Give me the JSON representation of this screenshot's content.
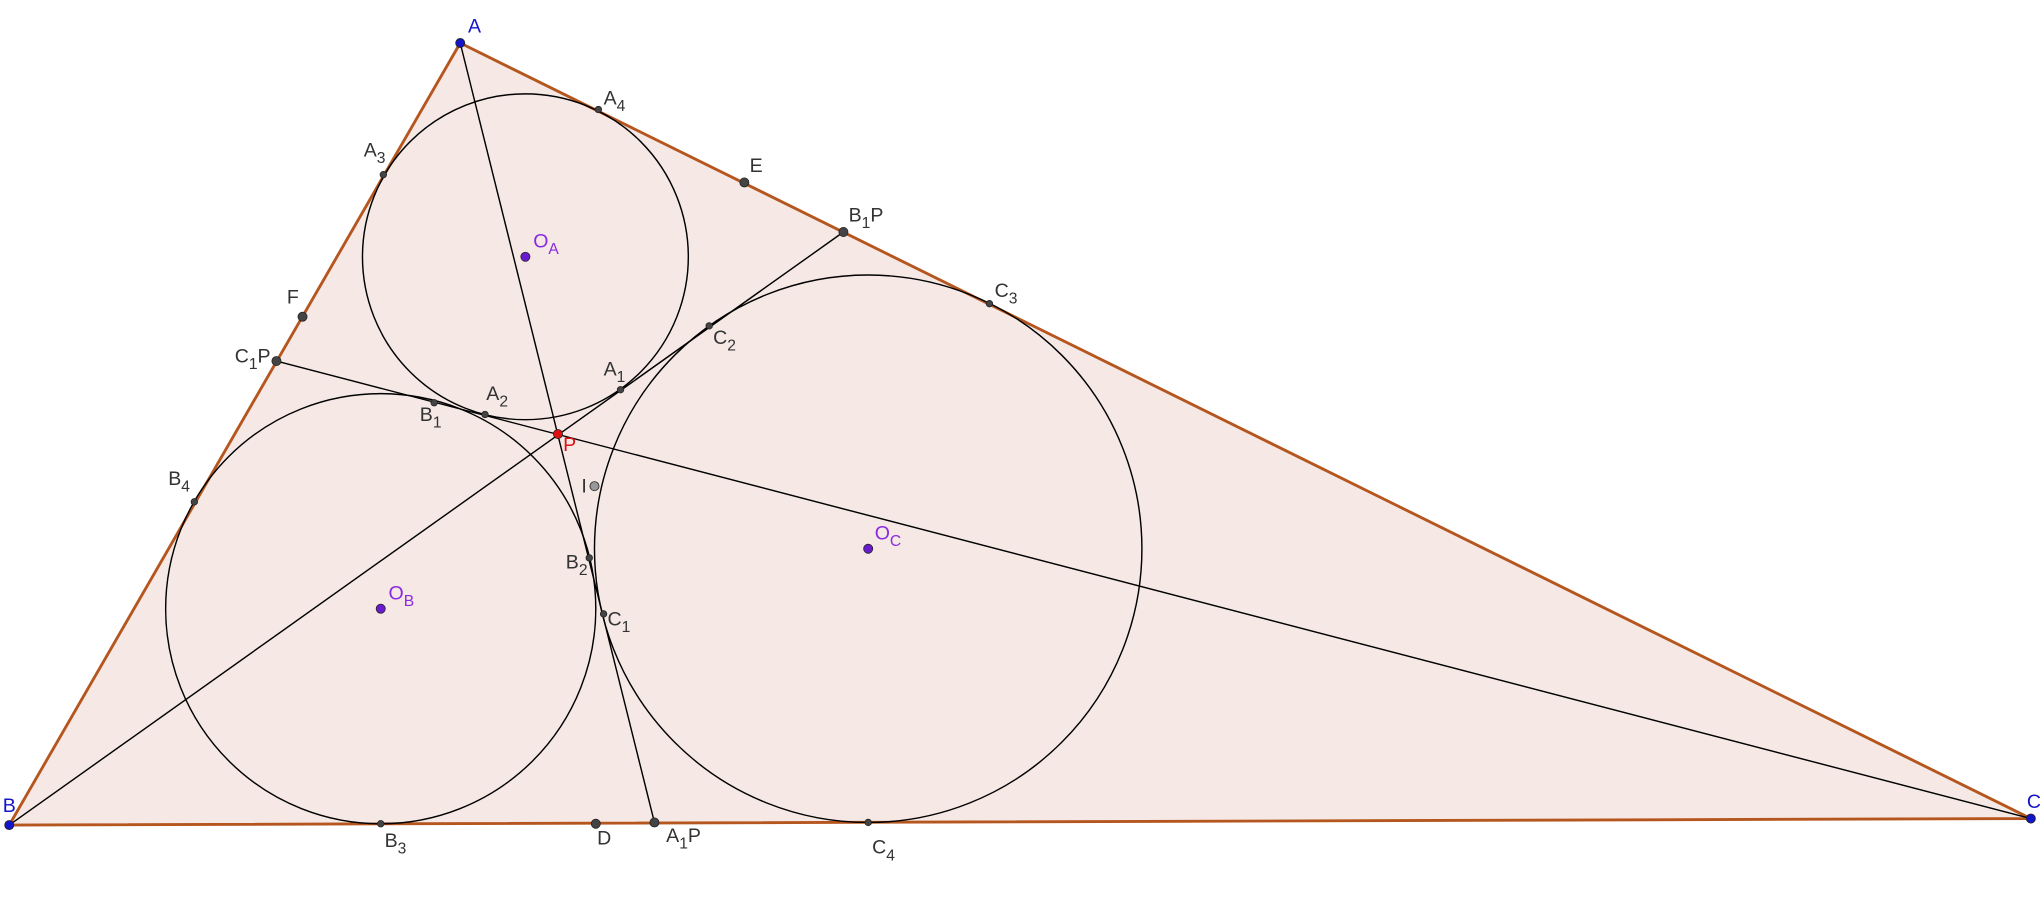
{
  "points": [
    {
      "label": {
        "name": "A"
      }
    },
    {
      "label": {
        "name": "B"
      }
    },
    {
      "label": {
        "name": "C"
      }
    },
    {
      "label": {
        "name": "A",
        "sub": "4"
      }
    },
    {
      "label": {
        "name": "E"
      }
    },
    {
      "label": {
        "name": "B",
        "sub": "1",
        "suffix": "P"
      }
    },
    {
      "label": {
        "name": "C",
        "sub": "3"
      }
    },
    {
      "label": {
        "name": "A",
        "sub": "3"
      }
    },
    {
      "label": {
        "name": "F"
      }
    },
    {
      "label": {
        "name": "C",
        "sub": "1",
        "suffix": "P"
      }
    },
    {
      "label": {
        "name": "B",
        "sub": "4"
      }
    },
    {
      "label": {
        "name": "O",
        "sub": "A"
      }
    },
    {
      "label": {
        "name": "O",
        "sub": "B"
      }
    },
    {
      "label": {
        "name": "O",
        "sub": "C"
      }
    },
    {
      "label": {
        "name": "B",
        "sub": "1"
      }
    },
    {
      "label": {
        "name": "A",
        "sub": "2"
      }
    },
    {
      "label": {
        "name": "A",
        "sub": "1"
      }
    },
    {
      "label": {
        "name": "C",
        "sub": "2"
      }
    },
    {
      "label": {
        "name": "P"
      }
    },
    {
      "label": {
        "name": "I"
      }
    },
    {
      "label": {
        "name": "B",
        "sub": "2"
      }
    },
    {
      "label": {
        "name": "C",
        "sub": "1"
      }
    },
    {
      "label": {
        "name": "B",
        "sub": "3"
      }
    },
    {
      "label": {
        "name": "D"
      }
    },
    {
      "label": {
        "name": "A",
        "sub": "1",
        "suffix": "P"
      }
    },
    {
      "label": {
        "name": "C",
        "sub": "4"
      }
    }
  ]
}
